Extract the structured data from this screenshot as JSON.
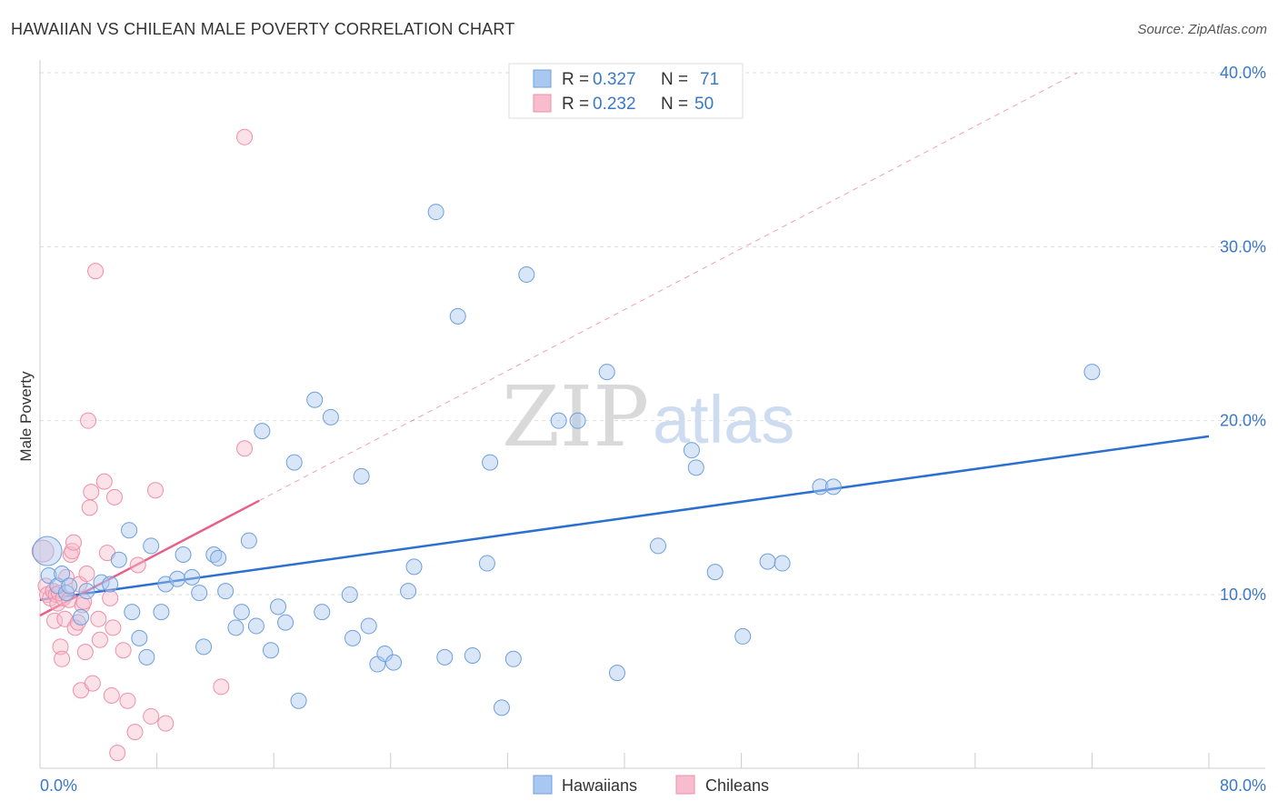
{
  "title": "HAWAIIAN VS CHILEAN MALE POVERTY CORRELATION CHART",
  "source": "Source: ZipAtlas.com",
  "watermark": {
    "zip": "ZIP",
    "atlas": "atlas"
  },
  "colors": {
    "hawaiians": "#a9c8f0",
    "hawaiians_stroke": "#6f9fdc",
    "hawaiians_line": "#2b6fd0",
    "chileans": "#f7bccd",
    "chileans_stroke": "#ee8fab",
    "chileans_line": "#e8608a",
    "tick_label": "#3a78c9",
    "grid": "#dddddd"
  },
  "legend": {
    "r_label": "R = ",
    "n_label": "N = ",
    "rows": [
      {
        "r": "0.327",
        "n": "71"
      },
      {
        "r": "0.232",
        "n": "50"
      }
    ]
  },
  "chart_data": {
    "type": "scatter",
    "title": "HAWAIIAN VS CHILEAN MALE POVERTY CORRELATION CHART",
    "xlabel": "",
    "ylabel": "Male Poverty",
    "xlim": [
      0,
      80
    ],
    "ylim": [
      0,
      41
    ],
    "x_tick_labels": [
      "0.0%",
      "80.0%"
    ],
    "y_ticks": [
      10,
      20,
      30,
      40
    ],
    "y_tick_labels": [
      "10.0%",
      "20.0%",
      "30.0%",
      "40.0%"
    ],
    "grid": true,
    "legend_position": "bottom-center",
    "series": [
      {
        "name": "Hawaiians",
        "r": 0.327,
        "n": 71,
        "trend": {
          "x": [
            0,
            80
          ],
          "y": [
            9.7,
            19.1
          ]
        },
        "points": [
          [
            0.5,
            12.5
          ],
          [
            0.6,
            11.1
          ],
          [
            1.2,
            10.5
          ],
          [
            1.5,
            11.2
          ],
          [
            1.8,
            10.1
          ],
          [
            2.0,
            10.5
          ],
          [
            2.8,
            8.7
          ],
          [
            3.2,
            10.2
          ],
          [
            4.2,
            10.7
          ],
          [
            4.8,
            10.6
          ],
          [
            5.4,
            12.0
          ],
          [
            6.1,
            13.7
          ],
          [
            6.3,
            9.0
          ],
          [
            6.8,
            7.5
          ],
          [
            7.3,
            6.4
          ],
          [
            7.6,
            12.8
          ],
          [
            8.3,
            9.0
          ],
          [
            8.6,
            10.6
          ],
          [
            9.4,
            10.9
          ],
          [
            9.8,
            12.3
          ],
          [
            10.4,
            11.0
          ],
          [
            10.9,
            10.1
          ],
          [
            11.2,
            7.0
          ],
          [
            11.9,
            12.3
          ],
          [
            12.2,
            12.1
          ],
          [
            12.7,
            10.2
          ],
          [
            13.4,
            8.1
          ],
          [
            13.8,
            9.0
          ],
          [
            14.3,
            13.1
          ],
          [
            14.8,
            8.2
          ],
          [
            15.2,
            19.4
          ],
          [
            15.8,
            6.8
          ],
          [
            16.3,
            9.3
          ],
          [
            16.8,
            8.4
          ],
          [
            17.4,
            17.6
          ],
          [
            17.7,
            3.9
          ],
          [
            18.8,
            21.2
          ],
          [
            19.3,
            9.0
          ],
          [
            19.9,
            20.2
          ],
          [
            21.2,
            10.0
          ],
          [
            21.4,
            7.5
          ],
          [
            22.0,
            16.8
          ],
          [
            22.5,
            8.2
          ],
          [
            23.1,
            6.0
          ],
          [
            23.6,
            6.6
          ],
          [
            24.2,
            6.1
          ],
          [
            25.2,
            10.2
          ],
          [
            25.6,
            11.6
          ],
          [
            27.1,
            32.0
          ],
          [
            27.7,
            6.4
          ],
          [
            28.6,
            26.0
          ],
          [
            29.6,
            6.5
          ],
          [
            30.6,
            11.8
          ],
          [
            30.8,
            17.6
          ],
          [
            31.6,
            3.5
          ],
          [
            32.4,
            6.3
          ],
          [
            33.3,
            28.4
          ],
          [
            35.5,
            20.0
          ],
          [
            36.8,
            20.0
          ],
          [
            38.8,
            22.8
          ],
          [
            39.5,
            5.5
          ],
          [
            42.3,
            12.8
          ],
          [
            44.6,
            18.3
          ],
          [
            44.9,
            17.3
          ],
          [
            46.2,
            11.3
          ],
          [
            48.1,
            7.6
          ],
          [
            49.8,
            11.9
          ],
          [
            50.8,
            11.8
          ],
          [
            53.4,
            16.2
          ],
          [
            54.3,
            16.2
          ],
          [
            72.0,
            22.8
          ]
        ]
      },
      {
        "name": "Chileans",
        "r": 0.232,
        "n": 50,
        "trend": {
          "x": [
            0,
            15.0
          ],
          "y": [
            8.8,
            15.4
          ],
          "dashed_extension": {
            "x": [
              15.0,
              71.0
            ],
            "y": [
              15.4,
              40.0
            ]
          }
        },
        "points": [
          [
            0.2,
            12.5
          ],
          [
            0.4,
            10.5
          ],
          [
            0.5,
            10.0
          ],
          [
            0.7,
            9.8
          ],
          [
            0.9,
            10.2
          ],
          [
            1.0,
            8.5
          ],
          [
            1.1,
            10.0
          ],
          [
            1.2,
            9.5
          ],
          [
            1.3,
            10.1
          ],
          [
            1.4,
            7.0
          ],
          [
            1.5,
            6.3
          ],
          [
            1.6,
            9.8
          ],
          [
            1.7,
            8.6
          ],
          [
            1.8,
            11.0
          ],
          [
            2.0,
            9.7
          ],
          [
            2.1,
            12.3
          ],
          [
            2.2,
            12.5
          ],
          [
            2.3,
            13.0
          ],
          [
            2.4,
            8.1
          ],
          [
            2.6,
            8.4
          ],
          [
            2.7,
            10.6
          ],
          [
            2.8,
            4.5
          ],
          [
            2.9,
            9.4
          ],
          [
            3.0,
            9.6
          ],
          [
            3.1,
            6.7
          ],
          [
            3.2,
            11.2
          ],
          [
            3.3,
            20.0
          ],
          [
            3.4,
            15.0
          ],
          [
            3.5,
            15.9
          ],
          [
            3.6,
            4.9
          ],
          [
            3.8,
            28.6
          ],
          [
            4.0,
            8.6
          ],
          [
            4.1,
            7.4
          ],
          [
            4.4,
            16.5
          ],
          [
            4.6,
            12.4
          ],
          [
            4.8,
            9.8
          ],
          [
            4.9,
            4.2
          ],
          [
            5.0,
            8.1
          ],
          [
            5.1,
            15.6
          ],
          [
            5.3,
            0.9
          ],
          [
            5.7,
            6.8
          ],
          [
            6.0,
            3.9
          ],
          [
            6.5,
            2.1
          ],
          [
            6.7,
            11.7
          ],
          [
            7.6,
            3.0
          ],
          [
            7.9,
            16.0
          ],
          [
            8.6,
            2.6
          ],
          [
            12.4,
            4.7
          ],
          [
            14.0,
            18.4
          ],
          [
            14.0,
            36.3
          ]
        ]
      }
    ]
  },
  "bottom_legend": [
    "Hawaiians",
    "Chileans"
  ]
}
